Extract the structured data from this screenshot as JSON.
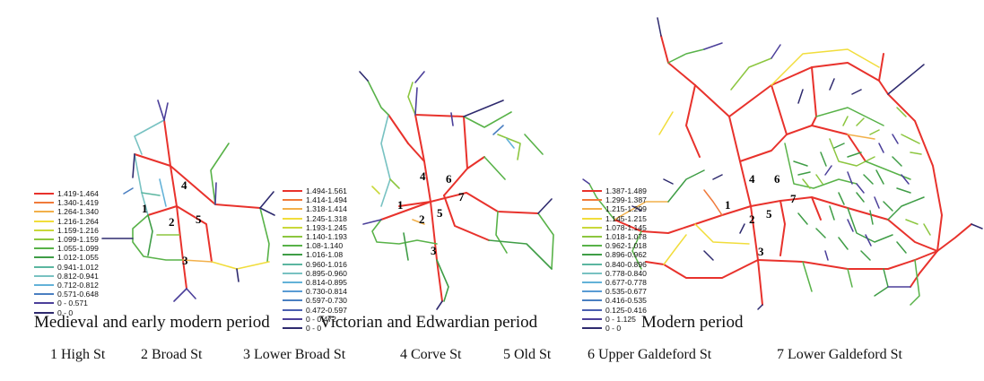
{
  "colors": {
    "legend": [
      "#e8322c",
      "#f07a3a",
      "#f2b04a",
      "#f1dd3b",
      "#c9d83a",
      "#8cc63f",
      "#58b248",
      "#3f9d46",
      "#5bb6a0",
      "#78c2c2",
      "#63b2d8",
      "#4a7fc1",
      "#4b3f9a",
      "#2e2a6e"
    ]
  },
  "panels": [
    {
      "caption": "Medieval and early modern period",
      "legend": [
        "1.419-1.464",
        "1.340-1.419",
        "1.264-1.340",
        "1.216-1.264",
        "1.159-1.216",
        "1.099-1.159",
        "1.055-1.099",
        "1.012-1.055",
        "0.941-1.012",
        "0.812-0.941",
        "0.712-0.812",
        "0.571-0.648",
        "0 - 0.571",
        "0 - 0"
      ],
      "numbers": [
        "1",
        "2",
        "3",
        "4",
        "5"
      ]
    },
    {
      "caption": "Victorian and Edwardian period",
      "legend": [
        "1.494-1.561",
        "1.414-1.494",
        "1.318-1.414",
        "1.245-1.318",
        "1.193-1.245",
        "1.140-1.193",
        "1.08-1.140",
        "1.016-1.08",
        "0.960-1.016",
        "0.895-0.960",
        "0.814-0.895",
        "0.730-0.814",
        "0.597-0.730",
        "0.472-0.597",
        "0 - 0.472",
        "0 - 0"
      ],
      "numbers": [
        "1",
        "2",
        "3",
        "4",
        "5",
        "6",
        "7"
      ]
    },
    {
      "caption": "Modern period",
      "legend": [
        "1.387-1.489",
        "1.299-1.387",
        "1.215-1.299",
        "1.145-1.215",
        "1.078-1.145",
        "1.018-1.078",
        "0.962-1.018",
        "0.896-0.962",
        "0.840-0.896",
        "0.778-0.840",
        "0.677-0.778",
        "0.535-0.677",
        "0.416-0.535",
        "0.125-0.416",
        "0 - 1.125",
        "0 - 0"
      ],
      "numbers": [
        "1",
        "2",
        "3",
        "4",
        "5",
        "6",
        "7"
      ]
    }
  ],
  "key": [
    "1 High St",
    "2 Broad St",
    "3 Lower Broad St",
    "4 Corve St",
    "5 Old St",
    "6 Upper Galdeford St",
    "7 Lower Galdeford St"
  ]
}
